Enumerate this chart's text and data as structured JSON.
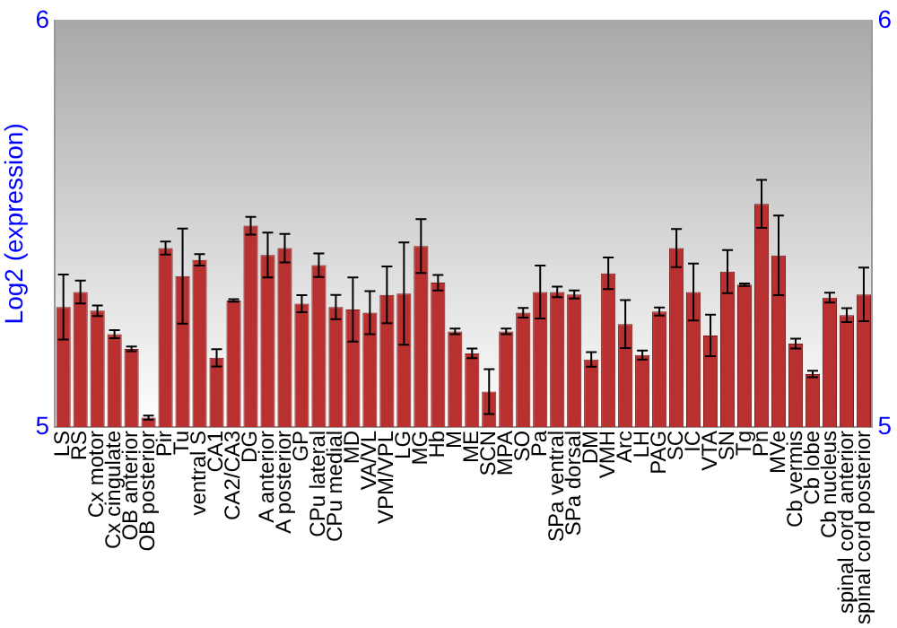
{
  "chart_data": {
    "type": "bar",
    "ylabel": "Log2 (expression)",
    "categories": [
      "LS",
      "RS",
      "Cx motor",
      "Cx cingulate",
      "OB anterior",
      "OB posterior",
      "Pir",
      "Tu",
      "ventral S",
      "CA1",
      "CA2/CA3",
      "DG",
      "A anterior",
      "A posterior",
      "GP",
      "CPu lateral",
      "CPu medial",
      "MD",
      "VA/VL",
      "VPM/VPL",
      "LG",
      "MG",
      "Hb",
      "M",
      "ME",
      "SCN",
      "MPA",
      "SO",
      "Pa",
      "SPa ventral",
      "SPa dorsal",
      "DM",
      "VMH",
      "Arc",
      "LH",
      "PAG",
      "SC",
      "IC",
      "VTA",
      "SN",
      "Tg",
      "Pn",
      "MVe",
      "Cb vermis",
      "Cb lobe",
      "Cb nucleus",
      "spinal cord anterior",
      "spinal cord posterior"
    ],
    "values": [
      5.295,
      5.332,
      5.286,
      5.228,
      5.192,
      5.023,
      5.44,
      5.371,
      5.411,
      5.17,
      5.311,
      5.495,
      5.423,
      5.44,
      5.303,
      5.398,
      5.295,
      5.289,
      5.281,
      5.325,
      5.328,
      5.445,
      5.355,
      5.235,
      5.181,
      5.087,
      5.235,
      5.281,
      5.332,
      5.332,
      5.326,
      5.166,
      5.378,
      5.253,
      5.177,
      5.284,
      5.44,
      5.332,
      5.225,
      5.382,
      5.35,
      5.549,
      5.422,
      5.205,
      5.13,
      5.318,
      5.275,
      5.326
    ],
    "errors": [
      0.08,
      0.028,
      0.013,
      0.01,
      0.006,
      0.005,
      0.016,
      0.117,
      0.014,
      0.021,
      0.003,
      0.022,
      0.055,
      0.035,
      0.021,
      0.029,
      0.03,
      0.079,
      0.053,
      0.07,
      0.126,
      0.066,
      0.019,
      0.007,
      0.012,
      0.055,
      0.007,
      0.012,
      0.065,
      0.013,
      0.01,
      0.018,
      0.039,
      0.059,
      0.011,
      0.01,
      0.047,
      0.07,
      0.051,
      0.053,
      0.003,
      0.059,
      0.098,
      0.012,
      0.008,
      0.012,
      0.017,
      0.066
    ],
    "color": "#b83030",
    "ylim": [
      5,
      6
    ],
    "yticks": [
      5,
      6
    ],
    "y2lim": [
      5,
      6
    ],
    "y2ticks": [
      5,
      6
    ]
  }
}
